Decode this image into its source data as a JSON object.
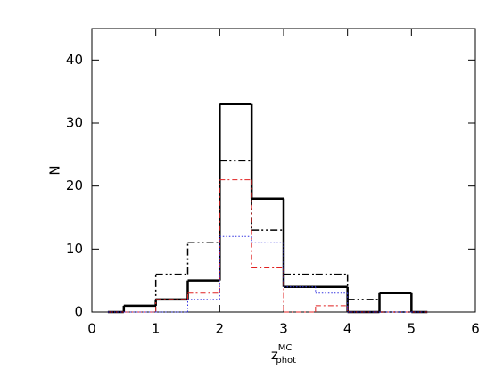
{
  "chart_data": {
    "type": "histogram",
    "xlabel": {
      "base": "z",
      "sup": "MC",
      "sub": "phot"
    },
    "ylabel": "N",
    "bins": [
      0.25,
      0.5,
      1,
      1.5,
      2,
      2.5,
      3,
      3.5,
      4,
      4.5,
      5,
      5.25
    ],
    "series": [
      {
        "color": "#000000",
        "linestyle": "solid",
        "width": 2.5,
        "values": [
          0,
          1,
          2,
          5,
          33,
          18,
          4,
          4,
          0,
          3,
          0
        ]
      },
      {
        "color": "#000000",
        "linestyle": "dash-dot-dot",
        "width": 1.5,
        "values": [
          0,
          1,
          6,
          11,
          24,
          13,
          6,
          6,
          2,
          0,
          0
        ]
      },
      {
        "color": "#e02020",
        "linestyle": "dash-dot",
        "width": 1,
        "values": [
          0,
          0,
          2,
          3,
          21,
          7,
          0,
          1,
          0,
          0,
          0
        ]
      },
      {
        "color": "#3030e0",
        "linestyle": "dotted",
        "width": 1,
        "values": [
          0,
          0,
          0,
          2,
          12,
          11,
          4,
          3,
          0,
          0,
          0
        ]
      }
    ],
    "xlim": [
      0,
      6
    ],
    "xticks": [
      0,
      1,
      2,
      3,
      4,
      5,
      6
    ],
    "ylim": [
      0,
      45
    ],
    "yticks": [
      0,
      10,
      20,
      30,
      40
    ]
  }
}
